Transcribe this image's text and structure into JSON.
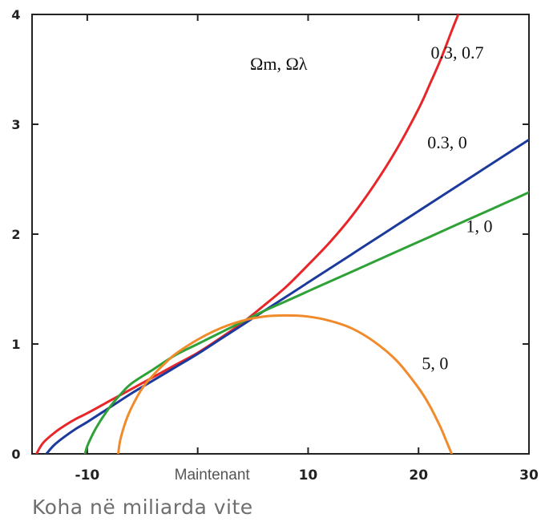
{
  "chart_data": {
    "type": "line",
    "title": "",
    "xlabel": "Koha në miliarda vite",
    "ylabel": "",
    "xlim": [
      -15,
      30
    ],
    "ylim": [
      0,
      4
    ],
    "x_ticks": [
      {
        "value": -10,
        "label": "-10"
      },
      {
        "value": 0,
        "label": "Maintenant"
      },
      {
        "value": 10,
        "label": "10"
      },
      {
        "value": 20,
        "label": "20"
      },
      {
        "value": 30,
        "label": "30"
      }
    ],
    "y_ticks": [
      {
        "value": 0,
        "label": "0"
      },
      {
        "value": 1,
        "label": "1"
      },
      {
        "value": 2,
        "label": "2"
      },
      {
        "value": 3,
        "label": "3"
      },
      {
        "value": 4,
        "label": "4"
      }
    ],
    "legend_title": "Ωm, Ωλ",
    "grid": false,
    "series": [
      {
        "name": "0.3, 0.7",
        "color": "#e8262a",
        "x": [
          -14.6,
          -14,
          -13,
          -12,
          -11,
          -10,
          -8,
          -6,
          -4,
          -2,
          0,
          2,
          4,
          6,
          8,
          10,
          12,
          14,
          16,
          18,
          20,
          21,
          22,
          23,
          24
        ],
        "y": [
          0,
          0.1,
          0.19,
          0.26,
          0.32,
          0.37,
          0.48,
          0.59,
          0.7,
          0.81,
          0.92,
          1.05,
          1.19,
          1.35,
          1.52,
          1.72,
          1.93,
          2.17,
          2.45,
          2.77,
          3.14,
          3.36,
          3.59,
          3.85,
          4.1
        ]
      },
      {
        "name": "0.3, 0",
        "color": "#1c3a9c",
        "x": [
          -13.7,
          -13,
          -12,
          -11,
          -10,
          -8,
          -6,
          -4,
          -2,
          0,
          2,
          4,
          6,
          8,
          10,
          12,
          14,
          16,
          18,
          20,
          22,
          24,
          26,
          28,
          30
        ],
        "y": [
          0,
          0.08,
          0.16,
          0.23,
          0.29,
          0.42,
          0.55,
          0.67,
          0.79,
          0.91,
          1.04,
          1.17,
          1.3,
          1.43,
          1.56,
          1.69,
          1.82,
          1.95,
          2.08,
          2.21,
          2.34,
          2.47,
          2.6,
          2.73,
          2.86
        ]
      },
      {
        "name": "1, 0",
        "color": "#2ea137",
        "x": [
          -10.2,
          -10,
          -9.5,
          -9,
          -8,
          -7,
          -6,
          -4,
          -2,
          0,
          2,
          4,
          6,
          8,
          10,
          12,
          14,
          16,
          18,
          20,
          22,
          24,
          26,
          28,
          30
        ],
        "y": [
          0,
          0.07,
          0.18,
          0.27,
          0.42,
          0.54,
          0.64,
          0.77,
          0.9,
          1.0,
          1.1,
          1.2,
          1.3,
          1.39,
          1.48,
          1.57,
          1.66,
          1.75,
          1.84,
          1.93,
          2.02,
          2.11,
          2.2,
          2.29,
          2.38
        ]
      },
      {
        "name": "5, 0",
        "color": "#f18a2a",
        "x": [
          -7.2,
          -7,
          -6.5,
          -6,
          -5,
          -4,
          -3,
          -2,
          0,
          2,
          4,
          6,
          8,
          10,
          12,
          14,
          16,
          18,
          20,
          21,
          22,
          22.5,
          23
        ],
        "y": [
          0,
          0.13,
          0.3,
          0.42,
          0.6,
          0.72,
          0.82,
          0.91,
          1.04,
          1.14,
          1.21,
          1.25,
          1.26,
          1.25,
          1.21,
          1.14,
          1.02,
          0.85,
          0.6,
          0.44,
          0.24,
          0.12,
          0
        ]
      }
    ],
    "annotations": [
      {
        "text": "0.3, 0.7",
        "x": 23.5,
        "y": 3.6
      },
      {
        "text": "0.3, 0",
        "x": 22.6,
        "y": 2.78
      },
      {
        "text": "1, 0",
        "x": 25.5,
        "y": 2.02
      },
      {
        "text": "5, 0",
        "x": 21.5,
        "y": 0.77
      }
    ]
  }
}
